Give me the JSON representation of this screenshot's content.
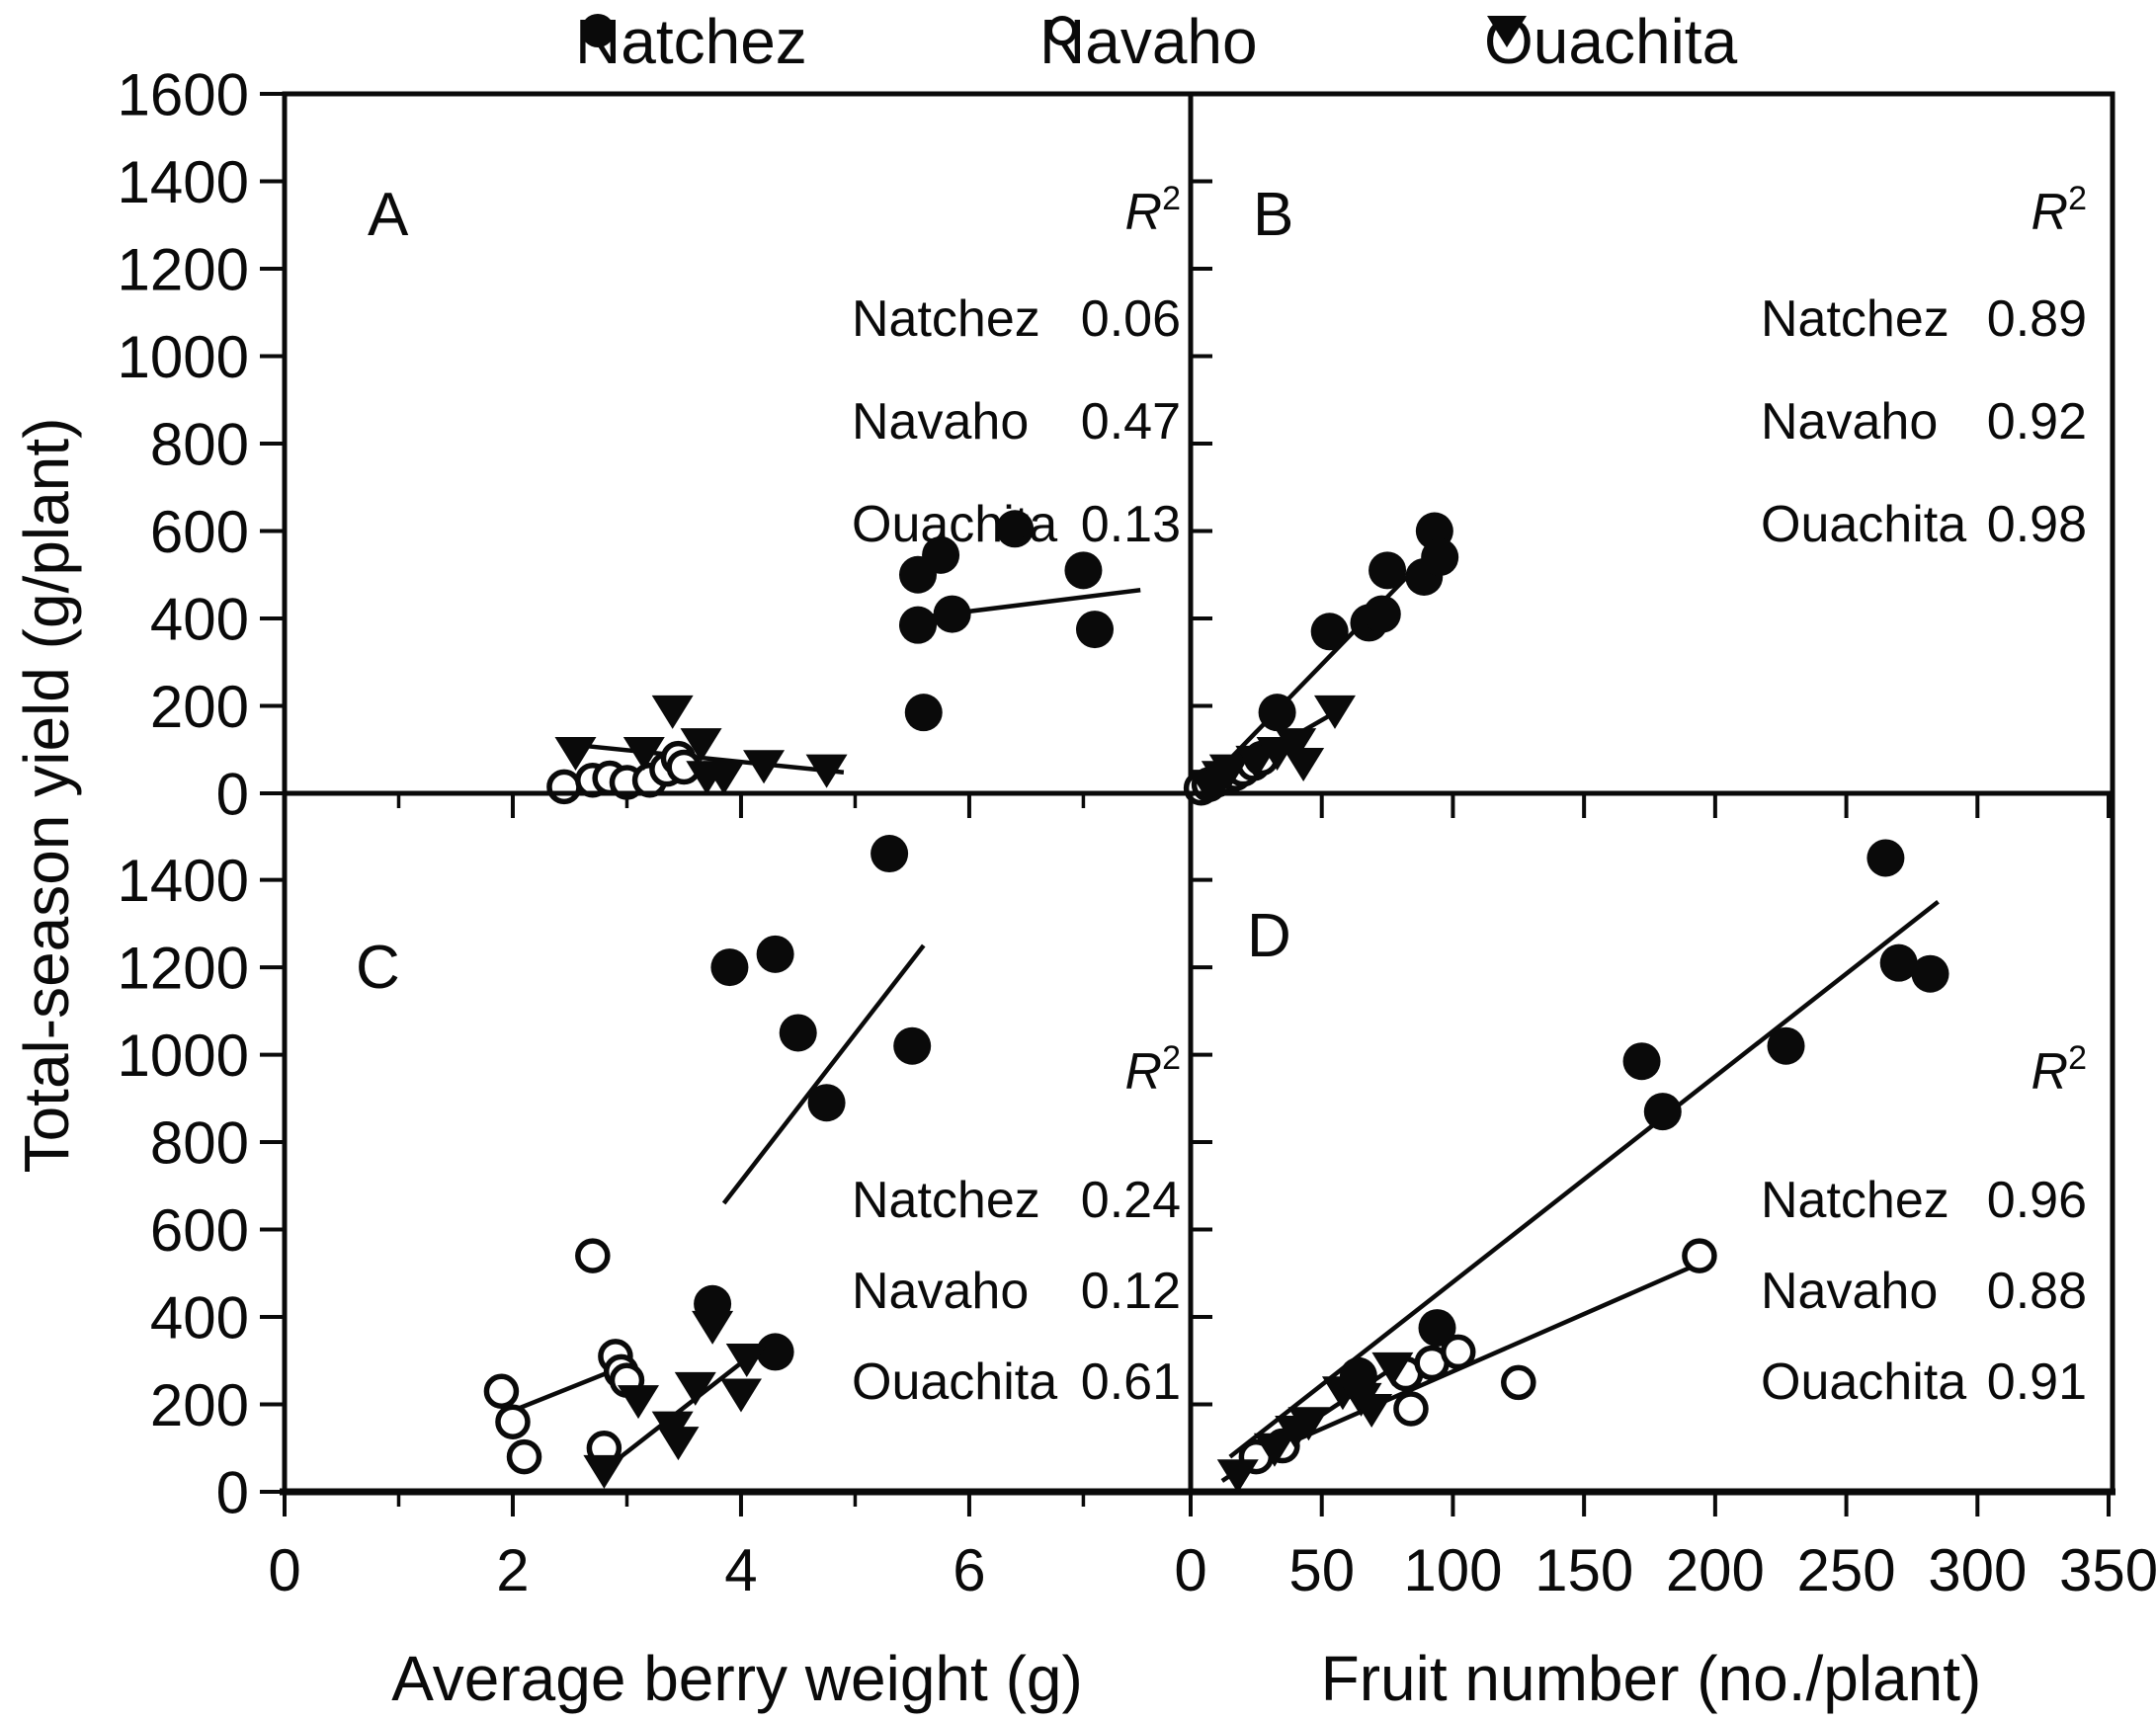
{
  "figure": {
    "y_axis_label": "Total-season yield (g/plant)",
    "x_axis_labels": {
      "left": "Average berry weight (g)",
      "right": "Fruit number (no./plant)"
    },
    "r2_symbol": "R",
    "r2_sup": "2",
    "ink_color": "#0a0a0a",
    "background_color": "#ffffff",
    "legend": [
      {
        "label": "Natchez",
        "marker": "filled-circle"
      },
      {
        "label": "Navaho",
        "marker": "open-circle"
      },
      {
        "label": "Ouachita",
        "marker": "filled-triangle"
      }
    ]
  },
  "chart_data": [
    {
      "id": "A",
      "type": "scatter",
      "panel_label": "A",
      "xlabel": "Average berry weight (g)",
      "ylabel": "Total-season yield (g/plant)",
      "xlim": [
        0,
        7.94
      ],
      "ylim": [
        0,
        1600
      ],
      "x_major_ticks": [
        0,
        2,
        4,
        6
      ],
      "x_minor_ticks": [
        1,
        3,
        5,
        7
      ],
      "x_tick_labels": [],
      "y_major_ticks": [
        0,
        200,
        400,
        600,
        800,
        1000,
        1200,
        1400,
        1600
      ],
      "y_tick_labels": [
        0,
        200,
        400,
        600,
        800,
        1000,
        1200,
        1400,
        1600
      ],
      "r2": [
        {
          "series": "Natchez",
          "value": "0.06"
        },
        {
          "series": "Navaho",
          "value": "0.47"
        },
        {
          "series": "Ouachita",
          "value": "0.13"
        }
      ],
      "series": [
        {
          "name": "Natchez",
          "marker": "filled-circle",
          "points": [
            [
              5.55,
              500
            ],
            [
              5.75,
              545
            ],
            [
              6.4,
              605
            ],
            [
              5.55,
              385
            ],
            [
              5.85,
              410
            ],
            [
              7.0,
              510
            ],
            [
              7.1,
              375
            ],
            [
              5.6,
              185
            ]
          ],
          "trend": [
            [
              5.5,
              400
            ],
            [
              7.5,
              465
            ]
          ]
        },
        {
          "name": "Navaho",
          "marker": "open-circle",
          "points": [
            [
              2.45,
              15
            ],
            [
              2.7,
              30
            ],
            [
              2.85,
              35
            ],
            [
              3.0,
              25
            ],
            [
              3.2,
              30
            ],
            [
              3.35,
              55
            ],
            [
              3.45,
              80
            ],
            [
              3.5,
              60
            ]
          ],
          "trend": [
            [
              2.4,
              12
            ],
            [
              3.55,
              68
            ]
          ]
        },
        {
          "name": "Ouachita",
          "marker": "filled-triangle",
          "points": [
            [
              2.55,
              95
            ],
            [
              3.15,
              95
            ],
            [
              3.4,
              190
            ],
            [
              3.65,
              115
            ],
            [
              3.7,
              40
            ],
            [
              3.85,
              40
            ],
            [
              4.2,
              65
            ],
            [
              4.75,
              55
            ]
          ],
          "trend": [
            [
              2.5,
              112
            ],
            [
              4.9,
              48
            ]
          ]
        }
      ]
    },
    {
      "id": "B",
      "type": "scatter",
      "panel_label": "B",
      "xlabel": "Fruit number (no./plant)",
      "ylabel": "Total-season yield (g/plant)",
      "xlim": [
        0,
        351.5
      ],
      "ylim": [
        0,
        1600
      ],
      "x_major_ticks": [
        0,
        50,
        100,
        150,
        200,
        250,
        300,
        350
      ],
      "x_minor_ticks": [],
      "x_tick_labels": [],
      "y_major_ticks": [
        0,
        200,
        400,
        600,
        800,
        1000,
        1200,
        1400,
        1600
      ],
      "y_tick_labels": [],
      "r2": [
        {
          "series": "Natchez",
          "value": "0.89"
        },
        {
          "series": "Navaho",
          "value": "0.92"
        },
        {
          "series": "Ouachita",
          "value": "0.98"
        }
      ],
      "series": [
        {
          "name": "Natchez",
          "marker": "filled-circle",
          "points": [
            [
              33,
              185
            ],
            [
              53,
              370
            ],
            [
              68,
              390
            ],
            [
              73,
              410
            ],
            [
              75,
              510
            ],
            [
              89,
              495
            ],
            [
              93,
              600
            ],
            [
              95,
              540
            ]
          ],
          "trend": [
            [
              12,
              60
            ],
            [
              97,
              585
            ]
          ]
        },
        {
          "name": "Navaho",
          "marker": "open-circle",
          "points": [
            [
              4,
              12
            ],
            [
              7,
              20
            ],
            [
              10,
              30
            ],
            [
              13,
              38
            ],
            [
              17,
              45
            ],
            [
              20,
              55
            ],
            [
              24,
              68
            ],
            [
              27,
              80
            ]
          ],
          "trend": [
            [
              3,
              10
            ],
            [
              28,
              85
            ]
          ]
        },
        {
          "name": "Ouachita",
          "marker": "filled-triangle",
          "points": [
            [
              7,
              20
            ],
            [
              12,
              40
            ],
            [
              15,
              55
            ],
            [
              25,
              75
            ],
            [
              33,
              95
            ],
            [
              40,
              115
            ],
            [
              43,
              70
            ],
            [
              55,
              190
            ]
          ],
          "trend": [
            [
              5,
              12
            ],
            [
              58,
              195
            ]
          ]
        }
      ]
    },
    {
      "id": "C",
      "type": "scatter",
      "panel_label": "C",
      "xlabel": "Average berry weight (g)",
      "ylabel": "Total-season yield (g/plant)",
      "xlim": [
        0,
        7.94
      ],
      "ylim": [
        0,
        1598
      ],
      "x_major_ticks": [
        0,
        2,
        4,
        6
      ],
      "x_minor_ticks": [
        1,
        3,
        5,
        7
      ],
      "x_tick_labels": [
        0,
        2,
        4,
        6
      ],
      "y_major_ticks": [
        0,
        200,
        400,
        600,
        800,
        1000,
        1200,
        1400
      ],
      "y_tick_labels": [
        0,
        200,
        400,
        600,
        800,
        1000,
        1200,
        1400
      ],
      "r2": [
        {
          "series": "Natchez",
          "value": "0.24"
        },
        {
          "series": "Navaho",
          "value": "0.12"
        },
        {
          "series": "Ouachita",
          "value": "0.61"
        }
      ],
      "series": [
        {
          "name": "Natchez",
          "marker": "filled-circle",
          "points": [
            [
              3.75,
              430
            ],
            [
              4.3,
              320
            ],
            [
              3.9,
              1200
            ],
            [
              4.3,
              1230
            ],
            [
              4.5,
              1050
            ],
            [
              4.75,
              890
            ],
            [
              5.3,
              1460
            ],
            [
              5.5,
              1020
            ]
          ],
          "trend": [
            [
              3.85,
              660
            ],
            [
              5.6,
              1250
            ]
          ]
        },
        {
          "name": "Navaho",
          "marker": "open-circle",
          "points": [
            [
              1.9,
              230
            ],
            [
              2.0,
              160
            ],
            [
              2.1,
              80
            ],
            [
              2.7,
              540
            ],
            [
              2.8,
              100
            ],
            [
              2.9,
              310
            ],
            [
              2.95,
              275
            ],
            [
              3.0,
              255
            ]
          ],
          "trend": [
            [
              1.9,
              175
            ],
            [
              3.0,
              290
            ]
          ]
        },
        {
          "name": "Ouachita",
          "marker": "filled-triangle",
          "points": [
            [
              2.8,
              50
            ],
            [
              3.1,
              210
            ],
            [
              3.4,
              150
            ],
            [
              3.45,
              115
            ],
            [
              3.6,
              240
            ],
            [
              3.75,
              380
            ],
            [
              4.0,
              225
            ],
            [
              4.05,
              305
            ]
          ],
          "trend": [
            [
              2.75,
              40
            ],
            [
              4.1,
              315
            ]
          ]
        }
      ]
    },
    {
      "id": "D",
      "type": "scatter",
      "panel_label": "D",
      "xlabel": "Fruit number (no./plant)",
      "ylabel": "Total-season yield (g/plant)",
      "xlim": [
        0,
        351.5
      ],
      "ylim": [
        0,
        1598
      ],
      "x_major_ticks": [
        0,
        50,
        100,
        150,
        200,
        250,
        300,
        350
      ],
      "x_minor_ticks": [],
      "x_tick_labels": [
        0,
        50,
        100,
        150,
        200,
        250,
        300,
        350
      ],
      "y_major_ticks": [
        0,
        200,
        400,
        600,
        800,
        1000,
        1200,
        1400
      ],
      "y_tick_labels": [],
      "r2": [
        {
          "series": "Natchez",
          "value": "0.96"
        },
        {
          "series": "Navaho",
          "value": "0.88"
        },
        {
          "series": "Ouachita",
          "value": "0.91"
        }
      ],
      "series": [
        {
          "name": "Natchez",
          "marker": "filled-circle",
          "points": [
            [
              64,
              265
            ],
            [
              94,
              375
            ],
            [
              172,
              985
            ],
            [
              180,
              870
            ],
            [
              227,
              1020
            ],
            [
              265,
              1450
            ],
            [
              270,
              1210
            ],
            [
              282,
              1185
            ]
          ],
          "trend": [
            [
              15,
              80
            ],
            [
              285,
              1350
            ]
          ]
        },
        {
          "name": "Navaho",
          "marker": "open-circle",
          "points": [
            [
              25,
              80
            ],
            [
              35,
              105
            ],
            [
              82,
              270
            ],
            [
              84,
              190
            ],
            [
              92,
              295
            ],
            [
              102,
              320
            ],
            [
              125,
              250
            ],
            [
              194,
              540
            ]
          ],
          "trend": [
            [
              18,
              60
            ],
            [
              195,
              525
            ]
          ]
        },
        {
          "name": "Ouachita",
          "marker": "filled-triangle",
          "points": [
            [
              18,
              40
            ],
            [
              32,
              100
            ],
            [
              40,
              140
            ],
            [
              45,
              160
            ],
            [
              58,
              230
            ],
            [
              65,
              215
            ],
            [
              69,
              190
            ],
            [
              77,
              285
            ]
          ],
          "trend": [
            [
              12,
              25
            ],
            [
              80,
              295
            ]
          ]
        }
      ]
    }
  ]
}
